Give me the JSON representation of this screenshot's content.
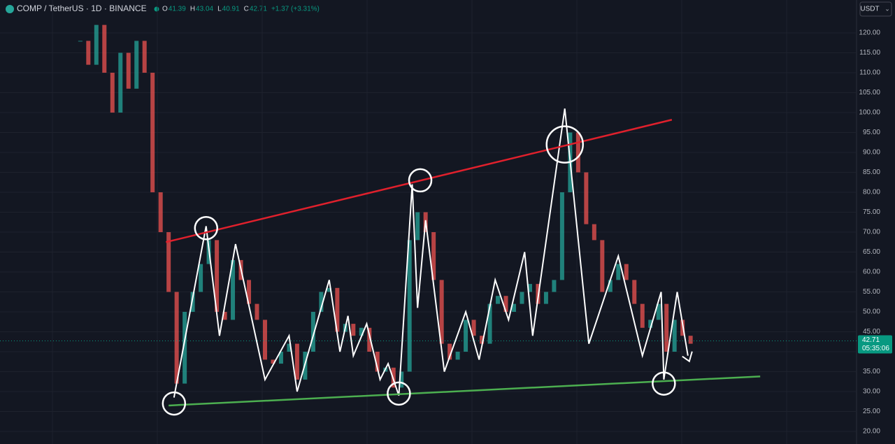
{
  "header": {
    "symbol": "COMP / TetherUS · 1D · BINANCE",
    "ohlc": [
      {
        "key": "O",
        "value": 41.39
      },
      {
        "key": "H",
        "value": 43.04
      },
      {
        "key": "L",
        "value": 40.91
      },
      {
        "key": "C",
        "value": 42.71
      }
    ],
    "change": "+1.37 (+3.31%)",
    "currency": "USDT"
  },
  "chart_data": {
    "type": "line",
    "xlim": [
      0,
      320
    ],
    "ylim": [
      16.84,
      128.25
    ],
    "yticks": [
      {
        "value": 20,
        "label": "20.00"
      },
      {
        "value": 25,
        "label": "25.00"
      },
      {
        "value": 30,
        "label": "30.00"
      },
      {
        "value": 35,
        "label": "35.00"
      },
      {
        "value": 40,
        "label": "40.00"
      },
      {
        "value": 45,
        "label": "45.00"
      },
      {
        "value": 50,
        "label": "50.00"
      },
      {
        "value": 55,
        "label": "55.00"
      },
      {
        "value": 60,
        "label": "60.00"
      },
      {
        "value": 65,
        "label": "65.00"
      },
      {
        "value": 70,
        "label": "70.00"
      },
      {
        "value": 75,
        "label": "75.00"
      },
      {
        "value": 80,
        "label": "80.00"
      },
      {
        "value": 85,
        "label": "85.00"
      },
      {
        "value": 90,
        "label": "90.00"
      },
      {
        "value": 95,
        "label": "95.00"
      },
      {
        "value": 100,
        "label": "100.00"
      },
      {
        "value": 105,
        "label": "105.00"
      },
      {
        "value": 110,
        "label": "110.00"
      },
      {
        "value": 115,
        "label": "115.00"
      },
      {
        "value": 120,
        "label": "120.00"
      }
    ],
    "grid": true,
    "price": {
      "up_color": "#26a69a",
      "down_color": "#ef5350",
      "x": [
        30,
        33,
        36,
        39,
        42,
        45,
        48,
        51,
        54,
        57,
        60,
        63,
        66,
        69,
        72,
        75,
        78,
        81,
        84,
        87,
        90,
        93,
        96,
        99,
        102,
        105,
        108,
        111,
        114,
        117,
        120,
        123,
        126,
        129,
        132,
        135,
        138,
        141,
        144,
        147,
        150,
        153,
        156,
        159,
        162,
        165,
        168,
        171,
        174,
        177,
        180,
        183,
        186,
        189,
        192,
        195,
        198,
        201,
        204,
        207,
        210,
        213,
        216,
        219,
        222,
        225,
        228,
        231,
        234,
        237,
        240,
        243,
        246,
        249,
        252,
        255,
        258
      ],
      "values": [
        118,
        112,
        122,
        110,
        100,
        115,
        106,
        118,
        110,
        80,
        70,
        55,
        32,
        50,
        55,
        62,
        68,
        50,
        48,
        63,
        58,
        52,
        48,
        38,
        37,
        40,
        42,
        33,
        40,
        50,
        55,
        56,
        45,
        47,
        44,
        46,
        40,
        35,
        36,
        31,
        35,
        68,
        75,
        70,
        58,
        42,
        38,
        40,
        48,
        44,
        42,
        52,
        54,
        50,
        52,
        55,
        57,
        52,
        55,
        58,
        80,
        95,
        85,
        72,
        68,
        55,
        58,
        62,
        58,
        52,
        46,
        48,
        52,
        40,
        48,
        44,
        42
      ]
    },
    "series": [
      {
        "name": "zigzag",
        "color": "#ffffff",
        "x": [
          65,
          77,
          82,
          88,
          99,
          108,
          111,
          123,
          127,
          130,
          132,
          137,
          142,
          145,
          149,
          154,
          156,
          159,
          166,
          174,
          179,
          185,
          190,
          196,
          199,
          211,
          220,
          231,
          240,
          247,
          248,
          253,
          257
        ],
        "values": [
          28.5,
          71.5,
          44,
          67,
          33,
          44,
          30,
          58,
          40,
          49,
          39,
          47,
          33,
          37,
          29,
          82,
          51,
          73,
          35,
          50,
          38,
          58,
          48,
          65,
          44,
          101,
          42,
          64,
          39,
          55,
          33,
          55,
          39
        ]
      },
      {
        "name": "resistance",
        "color": "#e0202c",
        "x": [
          62,
          251
        ],
        "values": [
          67.5,
          98.2
        ]
      },
      {
        "name": "support",
        "color": "#4caf50",
        "x": [
          63,
          284
        ],
        "values": [
          26.5,
          33.8
        ]
      }
    ],
    "circles": {
      "x": [
        65,
        77,
        157,
        211,
        149,
        248
      ],
      "values": [
        27,
        71,
        83,
        92,
        29.5,
        32
      ]
    },
    "last_price": 42.71,
    "last_price_color": "#089981",
    "countdown": "05:35:06"
  }
}
